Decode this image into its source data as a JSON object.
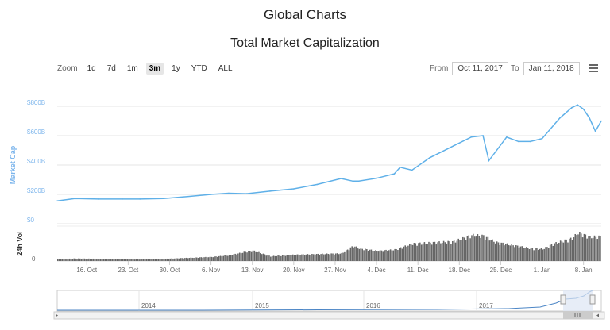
{
  "page": {
    "title": "Global Charts"
  },
  "colors": {
    "line": "#5fb0e8",
    "volume": "#666666",
    "navigator_fill": "#dde6f3"
  },
  "toolbar": {
    "zoom_label": "Zoom",
    "zoom_buttons": [
      "1d",
      "7d",
      "1m",
      "3m",
      "1y",
      "YTD",
      "ALL"
    ],
    "active_zoom": "3m",
    "from_label": "From",
    "from_value": "Oct 11, 2017",
    "to_label": "To",
    "to_value": "Jan 11, 2018",
    "menu_icon": "hamburger-menu-icon"
  },
  "navigator": {
    "year_labels": [
      "2014",
      "2015",
      "2016",
      "2017"
    ],
    "scroll_left_icon": "arrow-left-icon",
    "scroll_right_icon": "arrow-right-icon",
    "handle_icon": "grip-icon"
  },
  "chart_data": {
    "type": "line",
    "title": "Total Market Capitalization",
    "ylabel": "Market Cap",
    "volume_label": "24h Vol",
    "ylim": [
      0,
      800
    ],
    "y_unit": "B",
    "y_ticks": [
      "$0",
      "$200B",
      "$400B",
      "$600B",
      "$800B"
    ],
    "volume_ticks": [
      "0"
    ],
    "x_range": [
      "2017-10-11",
      "2018-01-11"
    ],
    "x_ticks": [
      "16. Oct",
      "23. Oct",
      "30. Oct",
      "6. Nov",
      "13. Nov",
      "20. Nov",
      "27. Nov",
      "4. Dec",
      "11. Dec",
      "18. Dec",
      "25. Dec",
      "1. Jan",
      "8. Jan"
    ],
    "grid": true,
    "legend": "none",
    "series": [
      {
        "type": "line",
        "x": [
          "2017-10-11",
          "2017-10-14",
          "2017-10-18",
          "2017-10-22",
          "2017-10-25",
          "2017-10-29",
          "2017-11-02",
          "2017-11-06",
          "2017-11-09",
          "2017-11-12",
          "2017-11-16",
          "2017-11-20",
          "2017-11-24",
          "2017-11-28",
          "2017-11-30",
          "2017-12-01",
          "2017-12-04",
          "2017-12-07",
          "2017-12-08",
          "2017-12-10",
          "2017-12-13",
          "2017-12-17",
          "2017-12-20",
          "2017-12-22",
          "2017-12-23",
          "2017-12-26",
          "2017-12-28",
          "2017-12-30",
          "2018-01-01",
          "2018-01-04",
          "2018-01-06",
          "2018-01-07",
          "2018-01-08",
          "2018-01-09",
          "2018-01-10",
          "2018-01-11"
        ],
        "y": [
          155,
          172,
          168,
          168,
          168,
          172,
          185,
          200,
          208,
          205,
          222,
          238,
          268,
          308,
          290,
          290,
          310,
          340,
          385,
          365,
          450,
          530,
          590,
          600,
          430,
          590,
          560,
          560,
          580,
          720,
          790,
          810,
          780,
          720,
          630,
          700
        ]
      },
      {
        "type": "volume",
        "x": [
          "2017-10-11",
          "2017-10-14",
          "2017-10-18",
          "2017-10-22",
          "2017-10-25",
          "2017-10-29",
          "2017-11-02",
          "2017-11-06",
          "2017-11-09",
          "2017-11-12",
          "2017-11-13",
          "2017-11-16",
          "2017-11-20",
          "2017-11-24",
          "2017-11-28",
          "2017-11-30",
          "2017-12-01",
          "2017-12-04",
          "2017-12-07",
          "2017-12-10",
          "2017-12-13",
          "2017-12-17",
          "2017-12-20",
          "2017-12-22",
          "2017-12-24",
          "2017-12-27",
          "2017-12-30",
          "2018-01-01",
          "2018-01-03",
          "2018-01-06",
          "2018-01-07",
          "2018-01-09",
          "2018-01-11"
        ],
        "y": [
          6,
          8,
          7,
          6,
          5,
          7,
          10,
          13,
          18,
          30,
          33,
          15,
          20,
          22,
          24,
          48,
          40,
          32,
          36,
          55,
          58,
          62,
          82,
          80,
          60,
          50,
          40,
          38,
          56,
          72,
          90,
          76,
          78
        ]
      }
    ]
  }
}
